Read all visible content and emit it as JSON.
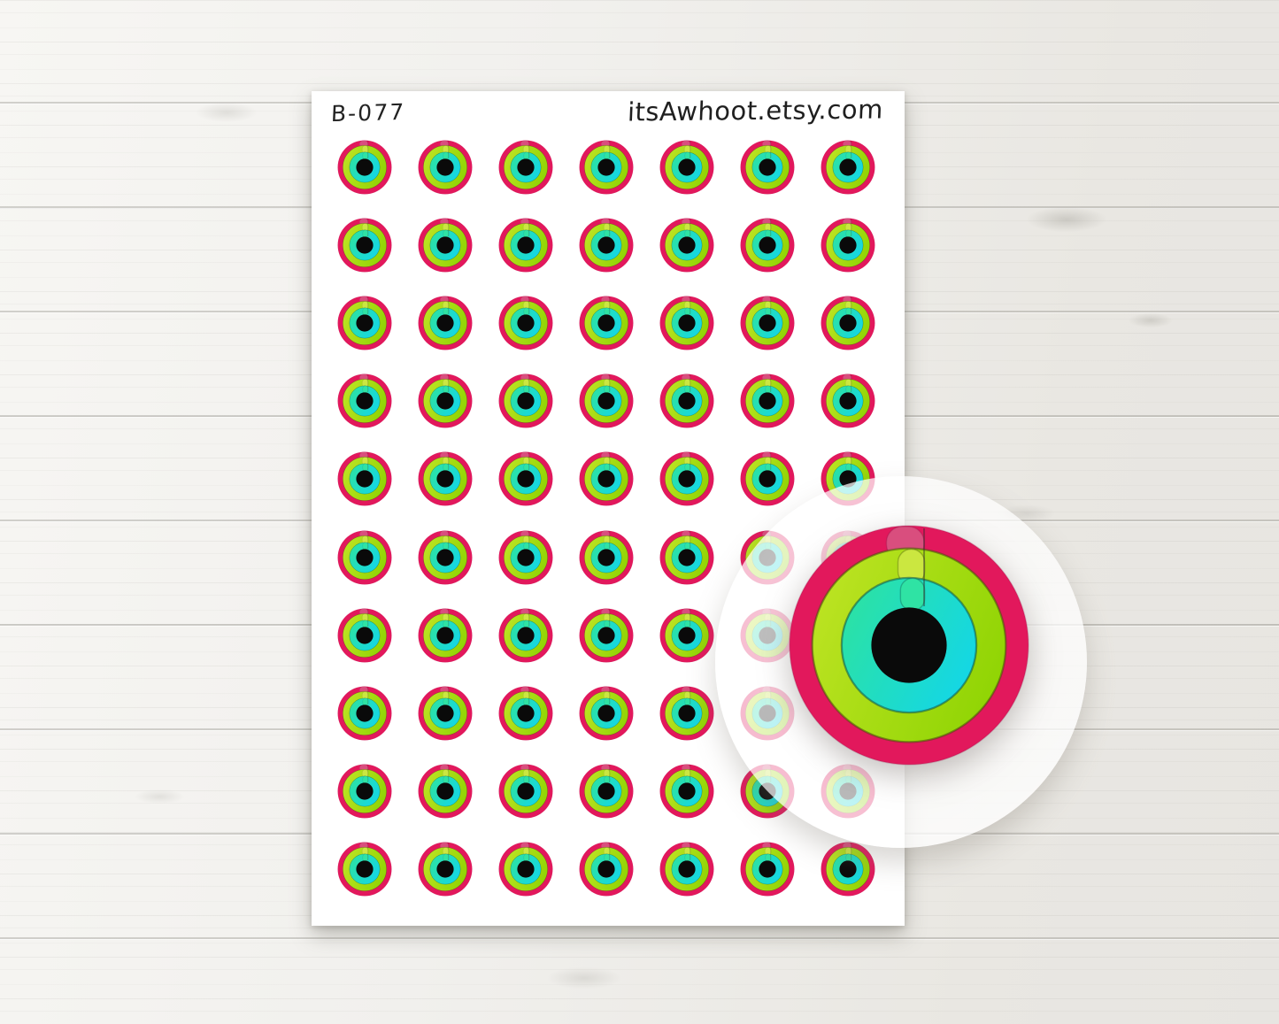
{
  "product": {
    "sheet_code": "B-077",
    "shop_url": "itsAwhoot.etsy.com"
  },
  "sheet": {
    "grid": {
      "rows": 10,
      "columns": 7,
      "total_stickers": 70
    }
  },
  "sticker": {
    "style": "fitness-activity-rings",
    "colors": {
      "outer_ring": "#e2185c",
      "outer_ring_cap": "#d94e7e",
      "middle_ring_light": "#bce322",
      "middle_ring_dark": "#8fd403",
      "middle_ring_cap": "#cbe740",
      "inner_ring_light": "#2ce2a3",
      "inner_ring_dark": "#13d6e8",
      "inner_ring_cap": "#2fe3a4",
      "center": "#0a0a0a"
    }
  },
  "background": {
    "wood_light": "#f7f6f3",
    "wood_mid": "#f1f0ed",
    "wood_dark": "#e9e7e2"
  }
}
